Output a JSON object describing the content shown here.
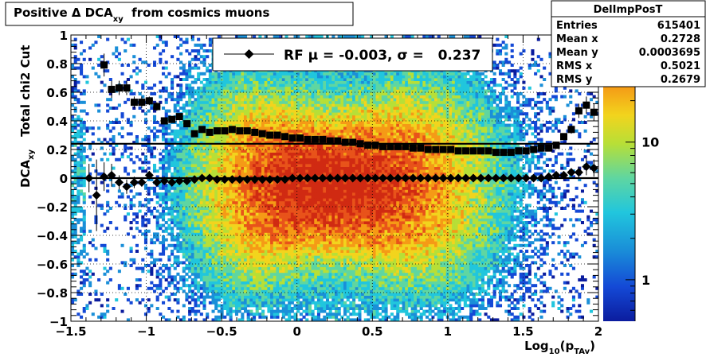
{
  "title": {
    "main": "Positive Δ DCA",
    "sub": "xy",
    "tail": "  from cosmics muons"
  },
  "stats": {
    "name": "DelImpPosT",
    "rows": [
      {
        "label": "Entries",
        "value": "615401"
      },
      {
        "label": "Mean x",
        "value": "0.2728"
      },
      {
        "label": "Mean y",
        "value": "0.0003695"
      },
      {
        "label": "RMS x",
        "value": "0.5021"
      },
      {
        "label": "RMS y",
        "value": "0.2679"
      }
    ]
  },
  "legend": {
    "text": "RF μ = -0.003, σ =   0.237"
  },
  "axes": {
    "xlabel_main": "Log",
    "xlabel_sub": "10",
    "xlabel_arg": "(p",
    "xlabel_arg_sub": "TAv",
    "xlabel_close": ")",
    "ylabel_top": "Total chi2 Cut",
    "ylabel_main": "DCA",
    "ylabel_sub": "xy",
    "xticks": [
      "−1.5",
      "−1",
      "−0.5",
      "0",
      "0.5",
      "1",
      "1.5",
      "2"
    ],
    "yticks": [
      "−1",
      "−0.8",
      "−0.6",
      "−0.4",
      "−0.2",
      "0",
      "0.2",
      "0.4",
      "0.6",
      "0.8",
      "1"
    ],
    "zticks": [
      "1",
      "10"
    ]
  },
  "colors": {
    "frame": "#000000",
    "grid": "#000000",
    "markers": "#000000",
    "palette": [
      "#0b1c9e",
      "#1449d6",
      "#1a8fd8",
      "#21c6dd",
      "#5fd6a1",
      "#b7df37",
      "#f2d41d",
      "#f59a16",
      "#e8531a",
      "#d02a12"
    ]
  },
  "chart_data": {
    "type": "heatmap",
    "title": "Positive Δ DCA_xy  from cosmics muons",
    "xlabel": "Log_10(p_TAv)",
    "ylabel": "DCA_xy",
    "xlim": [
      -1.5,
      2
    ],
    "ylim": [
      -1,
      1
    ],
    "zscale": "log",
    "zlim": [
      0.5,
      60
    ],
    "grid": true,
    "legend_position": "top-center",
    "histogram": {
      "name": "DelImpPosT",
      "entries": 615401,
      "mean_x": 0.2728,
      "mean_y": 0.0003695,
      "rms_x": 0.5021,
      "rms_y": 0.2679
    },
    "density_model": {
      "description": "approximate counts: peak near x=0.2, y=-0.05; sigma_y about 0.24",
      "peak_x": 0.2,
      "peak_y": -0.05
    },
    "series": [
      {
        "name": "RF μ = -0.003, σ =   0.237",
        "marker": "diamond",
        "x": [
          -1.38,
          -1.33,
          -1.28,
          -1.23,
          -1.18,
          -1.13,
          -1.08,
          -1.03,
          -0.98,
          -0.93,
          -0.88,
          -0.83,
          -0.78,
          -0.73,
          -0.68,
          -0.63,
          -0.58,
          -0.53,
          -0.48,
          -0.43,
          -0.38,
          -0.33,
          -0.28,
          -0.23,
          -0.18,
          -0.13,
          -0.08,
          -0.03,
          0.02,
          0.07,
          0.12,
          0.17,
          0.22,
          0.27,
          0.32,
          0.37,
          0.42,
          0.47,
          0.52,
          0.57,
          0.62,
          0.67,
          0.72,
          0.77,
          0.82,
          0.87,
          0.92,
          0.97,
          1.02,
          1.07,
          1.12,
          1.17,
          1.22,
          1.27,
          1.32,
          1.37,
          1.42,
          1.47,
          1.52,
          1.57,
          1.62,
          1.67,
          1.72,
          1.77,
          1.82,
          1.87,
          1.92,
          1.97
        ],
        "y": [
          0.0,
          -0.12,
          0.01,
          0.02,
          -0.03,
          -0.06,
          -0.03,
          -0.03,
          0.02,
          -0.03,
          -0.02,
          -0.03,
          -0.02,
          -0.02,
          -0.01,
          0.0,
          0.0,
          -0.01,
          -0.01,
          -0.01,
          -0.01,
          -0.01,
          -0.01,
          -0.01,
          -0.01,
          -0.01,
          -0.01,
          0.0,
          0.0,
          0.0,
          0.0,
          0.0,
          0.0,
          0.0,
          0.0,
          0.0,
          0.0,
          0.0,
          0.0,
          0.0,
          0.0,
          0.0,
          0.0,
          0.0,
          0.0,
          0.0,
          0.0,
          0.0,
          0.0,
          0.0,
          0.0,
          0.0,
          0.0,
          0.0,
          0.0,
          0.0,
          0.0,
          0.0,
          0.0,
          0.0,
          0.0,
          0.01,
          0.02,
          0.02,
          0.04,
          0.04,
          0.08,
          0.07
        ],
        "yerr": [
          0.1,
          0.25,
          0.1,
          0.08,
          0.05,
          0.05,
          0.04,
          0.03,
          0.03,
          0.02,
          0.02,
          0.02,
          0.01,
          0.01,
          0.01,
          0.01,
          0.01,
          0.01,
          0.01,
          0.01,
          0.01,
          0.01,
          0.01,
          0.01,
          0.01,
          0.01,
          0.01,
          0.01,
          0.01,
          0.01,
          0.01,
          0.01,
          0.01,
          0.01,
          0.01,
          0.01,
          0.01,
          0.01,
          0.01,
          0.01,
          0.01,
          0.01,
          0.01,
          0.01,
          0.01,
          0.01,
          0.01,
          0.01,
          0.01,
          0.01,
          0.01,
          0.01,
          0.01,
          0.01,
          0.01,
          0.01,
          0.01,
          0.01,
          0.01,
          0.01,
          0.01,
          0.01,
          0.02,
          0.02,
          0.03,
          0.04,
          0.06,
          0.06
        ]
      },
      {
        "marker": "square",
        "x": [
          -1.28,
          -1.23,
          -1.18,
          -1.13,
          -1.08,
          -1.03,
          -0.98,
          -0.93,
          -0.88,
          -0.83,
          -0.78,
          -0.73,
          -0.68,
          -0.63,
          -0.58,
          -0.53,
          -0.48,
          -0.43,
          -0.38,
          -0.33,
          -0.28,
          -0.23,
          -0.18,
          -0.13,
          -0.08,
          -0.03,
          0.02,
          0.07,
          0.12,
          0.17,
          0.22,
          0.27,
          0.32,
          0.37,
          0.42,
          0.47,
          0.52,
          0.57,
          0.62,
          0.67,
          0.72,
          0.77,
          0.82,
          0.87,
          0.92,
          0.97,
          1.02,
          1.07,
          1.12,
          1.17,
          1.22,
          1.27,
          1.32,
          1.37,
          1.42,
          1.47,
          1.52,
          1.57,
          1.62,
          1.67,
          1.72,
          1.77,
          1.82,
          1.87,
          1.92,
          1.97
        ],
        "y": [
          0.79,
          0.62,
          0.63,
          0.63,
          0.53,
          0.53,
          0.54,
          0.5,
          0.4,
          0.41,
          0.43,
          0.38,
          0.31,
          0.34,
          0.32,
          0.33,
          0.33,
          0.34,
          0.33,
          0.33,
          0.32,
          0.31,
          0.3,
          0.3,
          0.29,
          0.28,
          0.28,
          0.27,
          0.27,
          0.27,
          0.26,
          0.26,
          0.25,
          0.25,
          0.24,
          0.23,
          0.23,
          0.22,
          0.22,
          0.22,
          0.22,
          0.21,
          0.21,
          0.2,
          0.2,
          0.2,
          0.2,
          0.19,
          0.19,
          0.19,
          0.19,
          0.19,
          0.18,
          0.18,
          0.18,
          0.19,
          0.19,
          0.2,
          0.21,
          0.21,
          0.23,
          0.29,
          0.34,
          0.47,
          0.51,
          0.46
        ],
        "yerr": [
          0.08,
          0.06,
          0.05,
          0.05,
          0.04,
          0.04,
          0.03,
          0.03,
          0.02,
          0.02,
          0.02,
          0.02,
          0.01,
          0.01,
          0.01,
          0.01,
          0.01,
          0.01,
          0.01,
          0.01,
          0.01,
          0.01,
          0.01,
          0.01,
          0.01,
          0.01,
          0.01,
          0.01,
          0.01,
          0.01,
          0.01,
          0.01,
          0.01,
          0.01,
          0.01,
          0.01,
          0.01,
          0.01,
          0.01,
          0.01,
          0.01,
          0.01,
          0.01,
          0.01,
          0.01,
          0.01,
          0.01,
          0.01,
          0.01,
          0.01,
          0.01,
          0.01,
          0.01,
          0.01,
          0.01,
          0.01,
          0.01,
          0.01,
          0.01,
          0.01,
          0.01,
          0.02,
          0.03,
          0.05,
          0.06,
          0.06
        ]
      }
    ],
    "reference_lines": [
      {
        "y": 0.24,
        "description": "horizontal cut line"
      },
      {
        "y": 0.0,
        "description": "horizontal fit line"
      }
    ]
  }
}
